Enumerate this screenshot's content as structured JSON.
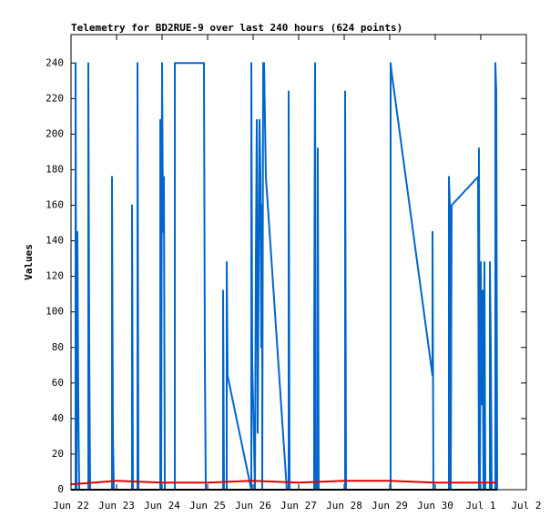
{
  "chart_data": {
    "type": "line",
    "title": "Telemetry for BD2RUE-9 over last 240 hours (624 points)",
    "y_label": "Values",
    "xlim": [
      0,
      10
    ],
    "xticks": [
      {
        "value": 0,
        "label": "Jun 22"
      },
      {
        "value": 1,
        "label": "Jun 23"
      },
      {
        "value": 2,
        "label": "Jun 24"
      },
      {
        "value": 3,
        "label": "Jun 25"
      },
      {
        "value": 4,
        "label": "Jun 26"
      },
      {
        "value": 5,
        "label": "Jun 27"
      },
      {
        "value": 6,
        "label": "Jun 28"
      },
      {
        "value": 7,
        "label": "Jun 29"
      },
      {
        "value": 8,
        "label": "Jun 30"
      },
      {
        "value": 9,
        "label": "Jul 1"
      },
      {
        "value": 10,
        "label": "Jul 2"
      }
    ],
    "ylim": [
      0,
      256
    ],
    "yticks": [
      0,
      20,
      40,
      60,
      80,
      100,
      120,
      140,
      160,
      180,
      200,
      220,
      240
    ],
    "grid": false,
    "series": [
      {
        "color": "#0066cc",
        "x": [
          0.1,
          0.1,
          0.12,
          0.14,
          0.16,
          0.18,
          0.38,
          0.38,
          0.4,
          0.42,
          0.9,
          0.9,
          0.92,
          0.94,
          1.34,
          1.34,
          1.36,
          1.46,
          1.46,
          1.48,
          1.96,
          1.96,
          1.98,
          2.0,
          2.02,
          2.04,
          2.06,
          2.28,
          2.28,
          2.92,
          2.94,
          2.96,
          3.34,
          3.34,
          3.36,
          3.42,
          3.42,
          3.44,
          3.96,
          3.96,
          3.98,
          4.04,
          4.06,
          4.08,
          4.1,
          4.14,
          4.16,
          4.18,
          4.2,
          4.2,
          4.22,
          4.24,
          4.28,
          4.74,
          4.78,
          4.78,
          4.8,
          5.34,
          5.34,
          5.36,
          5.38,
          5.42,
          5.42,
          5.44,
          6.02,
          6.02,
          6.04,
          7.02,
          7.02,
          7.04,
          7.94,
          7.94,
          7.96,
          8.3,
          8.3,
          8.32,
          8.34,
          8.36,
          8.94,
          8.96,
          8.96,
          8.98,
          9.0,
          9.02,
          9.04,
          9.06,
          9.08,
          9.1,
          9.2,
          9.2,
          9.22,
          9.24,
          9.32,
          9.32,
          9.34,
          9.36
        ],
        "values": [
          0,
          240,
          0,
          145,
          48,
          0,
          0,
          240,
          80,
          0,
          0,
          176,
          32,
          0,
          0,
          160,
          0,
          0,
          240,
          0,
          0,
          208,
          0,
          240,
          145,
          176,
          0,
          0,
          240,
          240,
          72,
          0,
          0,
          112,
          0,
          0,
          128,
          64,
          0,
          240,
          72,
          0,
          128,
          208,
          32,
          208,
          176,
          80,
          160,
          0,
          240,
          240,
          176,
          0,
          0,
          224,
          0,
          0,
          80,
          240,
          0,
          0,
          192,
          0,
          0,
          224,
          0,
          0,
          240,
          235,
          64,
          145,
          0,
          0,
          176,
          160,
          0,
          160,
          176,
          0,
          192,
          0,
          128,
          48,
          112,
          0,
          128,
          0,
          0,
          128,
          80,
          0,
          0,
          240,
          224,
          0
        ]
      },
      {
        "color": "#dd0000",
        "x": [
          0,
          0.5,
          1,
          2,
          3,
          4,
          5,
          6,
          7,
          8,
          9.36
        ],
        "values": [
          3,
          4,
          5,
          4,
          4,
          5,
          4,
          5,
          5,
          4,
          4
        ]
      },
      {
        "color": "#000000",
        "x": [
          0,
          9.36
        ],
        "values": [
          0,
          0
        ]
      }
    ]
  }
}
